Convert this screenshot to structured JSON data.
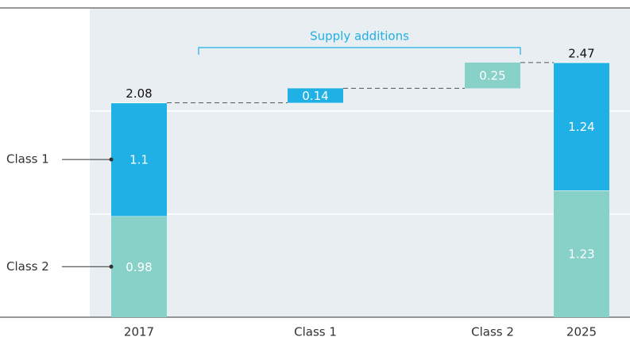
{
  "chart_data": {
    "type": "waterfall",
    "categories": [
      "2017",
      "Class 1",
      "Class 2",
      "2025"
    ],
    "series": [
      {
        "name": "Class 2",
        "color": "#88d1c8",
        "values": [
          0.98,
          null,
          0.25,
          1.23
        ]
      },
      {
        "name": "Class 1",
        "color": "#1fb0e6",
        "values": [
          1.1,
          0.14,
          null,
          1.24
        ]
      }
    ],
    "totals": [
      2.08,
      null,
      null,
      2.47
    ],
    "annotation": "Supply additions",
    "ylim": [
      0,
      3
    ],
    "yticks": [
      0,
      1,
      2,
      3
    ],
    "grid": true,
    "show_tick_labels": false
  }
}
